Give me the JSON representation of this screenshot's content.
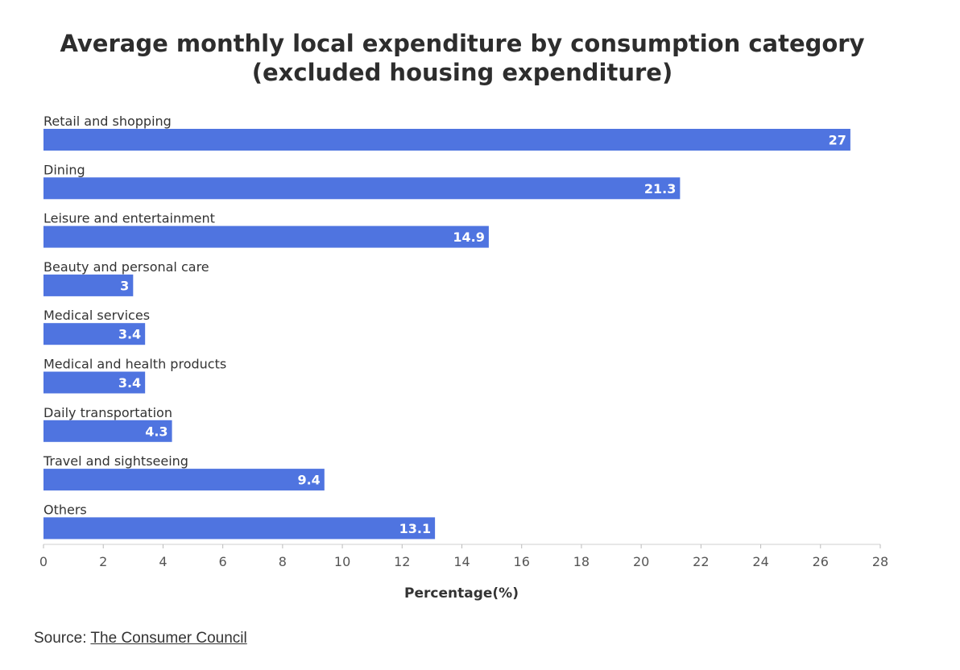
{
  "chart_data": {
    "type": "bar",
    "orientation": "horizontal",
    "title": "Average monthly local expenditure by consumption category (excluded housing expenditure)",
    "title_lines": [
      "Average monthly local expenditure by consumption category",
      "(excluded housing expenditure)"
    ],
    "categories": [
      "Retail and shopping",
      "Dining",
      "Leisure and entertainment",
      "Beauty and personal care",
      "Medical services",
      "Medical and health products",
      "Daily transportation",
      "Travel and sightseeing",
      "Others"
    ],
    "values": [
      27,
      21.3,
      14.9,
      3,
      3.4,
      3.4,
      4.3,
      9.4,
      13.1
    ],
    "value_labels": [
      "27",
      "21.3",
      "14.9",
      "3",
      "3.4",
      "3.4",
      "4.3",
      "9.4",
      "13.1"
    ],
    "xlabel": "Percentage(%)",
    "ylabel": "",
    "xlim": [
      0,
      28
    ],
    "x_ticks": [
      0,
      2,
      4,
      6,
      8,
      10,
      12,
      14,
      16,
      18,
      20,
      22,
      24,
      26,
      28
    ],
    "bar_color": "#4f74e0",
    "label_color": "#ffffff",
    "grid": false,
    "legend": "none"
  },
  "source": {
    "prefix": "Source: ",
    "link_text": "The Consumer Council"
  }
}
